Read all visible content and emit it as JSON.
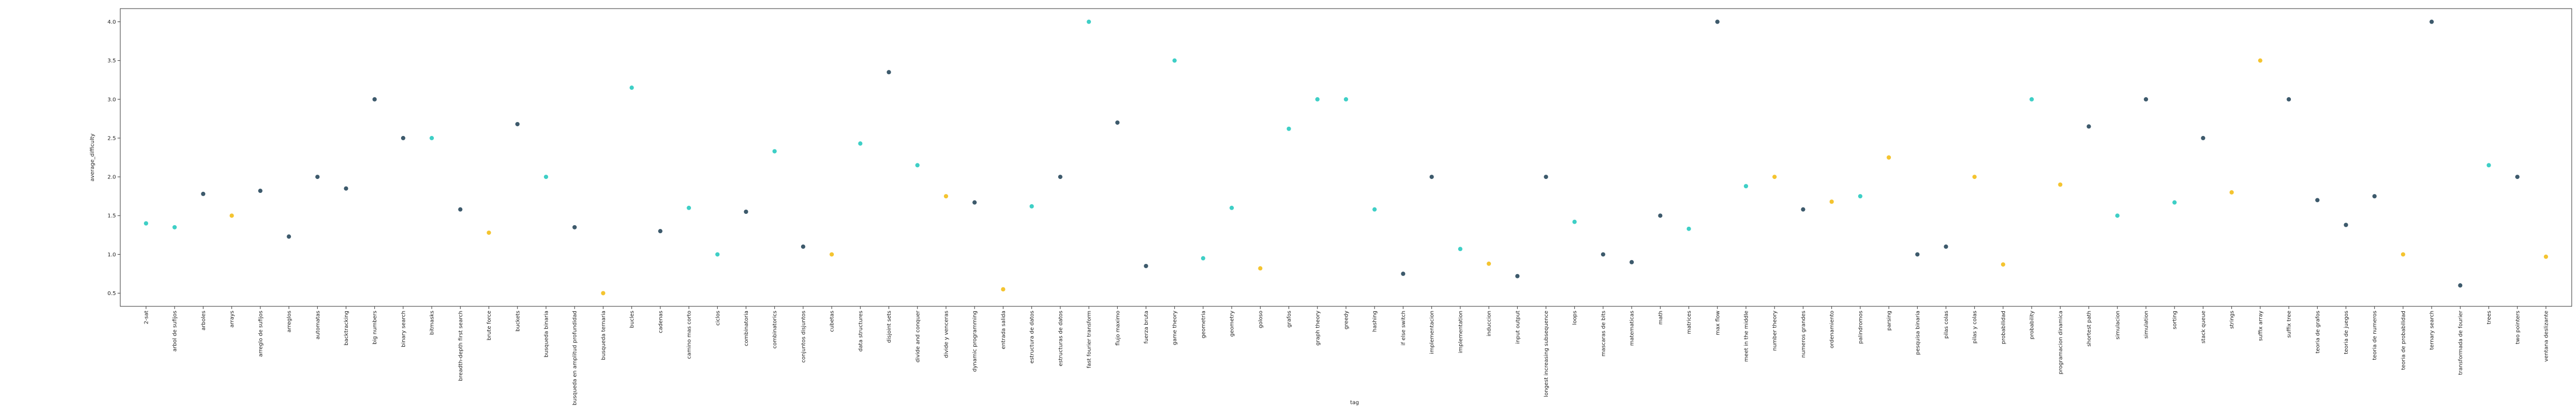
{
  "chart_data": {
    "type": "scatter",
    "x_label": "tag",
    "y_label": "average_difficulty",
    "categories": [
      "2-sat",
      "arbol de sufijos",
      "arboles",
      "arrays",
      "arreglo de sufijos",
      "arreglos",
      "automatas",
      "backtracking",
      "big numbers",
      "binary search",
      "bitmasks",
      "breadth-depth first search",
      "brute force",
      "buckets",
      "busqueda binaria",
      "busqueda en amplitud profundidad",
      "busqueda ternaria",
      "bucles",
      "cadenas",
      "camino mas corto",
      "ciclos",
      "combinatoria",
      "combinatorics",
      "conjuntos disjuntos",
      "cubetas",
      "data structures",
      "disjoint sets",
      "divide and conquer",
      "divide y venceras",
      "dynamic programming",
      "entrada salida",
      "estructura de datos",
      "estructuras de datos",
      "fast fourier transform",
      "flujo maximo",
      "fuerza bruta",
      "game theory",
      "geometria",
      "geometry",
      "goloso",
      "grafos",
      "graph theory",
      "greedy",
      "hashing",
      "if else switch",
      "implementacion",
      "implementation",
      "induccion",
      "input output",
      "longest increasing subsequence",
      "loops",
      "mascaras de bits",
      "matematicas",
      "math",
      "matrices",
      "max flow",
      "meet in the middle",
      "number theory",
      "numeros grandes",
      "ordenamiento",
      "palindromos",
      "parsing",
      "pesquisa binaria",
      "pilas colas",
      "pilas y colas",
      "probabilidad",
      "probability",
      "programacion dinamica",
      "shortest path",
      "simulacion",
      "simulation",
      "sorting",
      "stack queue",
      "strings",
      "suffix array",
      "suffix tree",
      "teoria de grafos",
      "teoria de juegos",
      "teoria de numeros",
      "teoria de probabilidad",
      "ternary search",
      "transformada de fourier",
      "trees",
      "two pointers",
      "ventana deslizante"
    ],
    "values": [
      1.4,
      1.35,
      1.78,
      1.5,
      1.82,
      1.23,
      2.0,
      1.85,
      3.0,
      2.5,
      2.5,
      1.58,
      1.28,
      2.68,
      2.0,
      1.35,
      0.5,
      3.15,
      1.3,
      1.6,
      1.0,
      1.55,
      2.33,
      1.1,
      1.0,
      2.43,
      3.35,
      2.15,
      1.75,
      1.67,
      0.55,
      1.62,
      2.0,
      4.0,
      2.7,
      0.85,
      3.5,
      0.95,
      1.6,
      0.82,
      2.62,
      3.0,
      3.0,
      1.58,
      0.75,
      2.0,
      1.07,
      0.88,
      0.72,
      2.0,
      1.42,
      1.0,
      0.9,
      1.5,
      1.33,
      4.0,
      1.88,
      2.0,
      1.58,
      1.68,
      1.75,
      2.25,
      1.0,
      1.1,
      2.0,
      0.87,
      3.0,
      1.9,
      2.65,
      1.5,
      3.0,
      1.67,
      2.5,
      1.8,
      3.5,
      3.0,
      1.7,
      1.38,
      1.75,
      1.0,
      4.0,
      0.6,
      2.15,
      2.0,
      0.97
    ],
    "colors": [
      "#3ecfc6",
      "#3ecfc6",
      "#3d5a6c",
      "#f4c430",
      "#3d5a6c",
      "#3d5a6c",
      "#3d5a6c",
      "#3d5a6c",
      "#3d5a6c",
      "#3d5a6c",
      "#3ecfc6",
      "#3d5a6c",
      "#f4c430",
      "#3d5a6c",
      "#3ecfc6",
      "#3d5a6c",
      "#f4c430",
      "#3ecfc6",
      "#3d5a6c",
      "#3ecfc6",
      "#3ecfc6",
      "#3d5a6c",
      "#3ecfc6",
      "#3d5a6c",
      "#f4c430",
      "#3ecfc6",
      "#3d5a6c",
      "#3ecfc6",
      "#f4c430",
      "#3d5a6c",
      "#f4c430",
      "#3ecfc6",
      "#3d5a6c",
      "#3ecfc6",
      "#3d5a6c",
      "#3d5a6c",
      "#3ecfc6",
      "#3ecfc6",
      "#3ecfc6",
      "#f4c430",
      "#3ecfc6",
      "#3ecfc6",
      "#3ecfc6",
      "#3ecfc6",
      "#3d5a6c",
      "#3d5a6c",
      "#3ecfc6",
      "#f4c430",
      "#3d5a6c",
      "#3d5a6c",
      "#3ecfc6",
      "#3d5a6c",
      "#3d5a6c",
      "#3d5a6c",
      "#3ecfc6",
      "#3d5a6c",
      "#3ecfc6",
      "#f4c430",
      "#3d5a6c",
      "#f4c430",
      "#3ecfc6",
      "#f4c430",
      "#3d5a6c",
      "#3d5a6c",
      "#f4c430",
      "#f4c430",
      "#3ecfc6",
      "#f4c430",
      "#3d5a6c",
      "#3ecfc6",
      "#3d5a6c",
      "#3ecfc6",
      "#3d5a6c",
      "#f4c430",
      "#f4c430",
      "#3d5a6c",
      "#3d5a6c",
      "#3d5a6c",
      "#3d5a6c",
      "#f4c430",
      "#3d5a6c",
      "#3d5a6c",
      "#3ecfc6",
      "#3d5a6c",
      "#f4c430"
    ],
    "ylim": [
      0.33,
      4.17
    ],
    "yticks": [
      {
        "value": 0.5,
        "label": "0.5"
      },
      {
        "value": 1.0,
        "label": "1.0"
      },
      {
        "value": 1.5,
        "label": "1.5"
      },
      {
        "value": 2.0,
        "label": "2.0"
      },
      {
        "value": 2.5,
        "label": "2.5"
      },
      {
        "value": 3.0,
        "label": "3.0"
      },
      {
        "value": 3.5,
        "label": "3.5"
      },
      {
        "value": 4.0,
        "label": "4.0"
      }
    ],
    "grid": false
  }
}
